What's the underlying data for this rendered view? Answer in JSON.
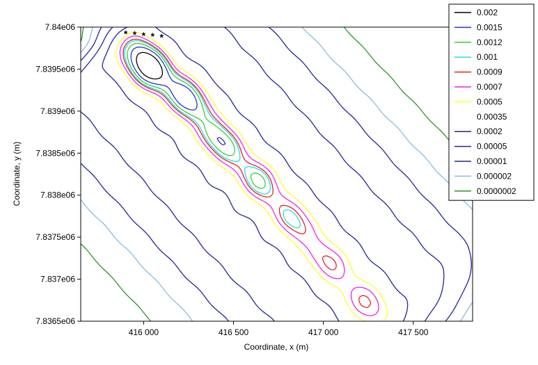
{
  "chart_data": {
    "type": "contour",
    "xlabel": "Coordinate, x (m)",
    "ylabel": "Coordinate, y (m)",
    "xlim": [
      415650,
      417830
    ],
    "ylim": [
      7836500,
      7840000
    ],
    "x_ticks": [
      416000,
      416500,
      417000,
      417500
    ],
    "x_tick_labels": [
      "416 000",
      "416 500",
      "417 000",
      "417 500"
    ],
    "y_ticks": [
      7836500,
      7837000,
      7837500,
      7838000,
      7838500,
      7839000,
      7839500,
      7840000
    ],
    "y_tick_labels": [
      "7.8365e06",
      "7.837e06",
      "7.8375e06",
      "7.838e06",
      "7.8385e06",
      "7.839e06",
      "7.8395e06",
      "7.84e06"
    ],
    "grid": false,
    "legend_position": "top-right",
    "legend": [
      {
        "label": "0.002",
        "color": "#000000"
      },
      {
        "label": "0.0015",
        "color": "#2233cc"
      },
      {
        "label": "0.0012",
        "color": "#33cc33"
      },
      {
        "label": "0.001",
        "color": "#22dddd"
      },
      {
        "label": "0.0009",
        "color": "#dd2222"
      },
      {
        "label": "0.0007",
        "color": "#ee22ee"
      },
      {
        "label": "0.0005",
        "color": "#ffff22"
      },
      {
        "label": "0.00035",
        "color": "#ffffff"
      },
      {
        "label": "0.0002",
        "color": "#222299"
      },
      {
        "label": "0.00005",
        "color": "#222299"
      },
      {
        "label": "0.00001",
        "color": "#222299"
      },
      {
        "label": "0.000002",
        "color": "#88bbdd"
      },
      {
        "label": "0.0000002",
        "color": "#229922"
      }
    ],
    "sources": [
      [
        415900,
        7839930
      ],
      [
        415950,
        7839920
      ],
      [
        416000,
        7839910
      ],
      [
        416050,
        7839900
      ],
      [
        416100,
        7839890
      ]
    ],
    "peaks": [
      {
        "x": 416020,
        "y": 7839550,
        "max_level": "0.002"
      },
      {
        "x": 416240,
        "y": 7839150,
        "max_level": "0.0015"
      },
      {
        "x": 416430,
        "y": 7838650,
        "max_level": "0.0012"
      },
      {
        "x": 416640,
        "y": 7838180,
        "max_level": "0.001"
      },
      {
        "x": 416840,
        "y": 7837700,
        "max_level": "0.0009"
      },
      {
        "x": 417030,
        "y": 7837220,
        "max_level": "0.0007"
      },
      {
        "x": 417240,
        "y": 7836720,
        "max_level": "0.0007"
      }
    ]
  }
}
